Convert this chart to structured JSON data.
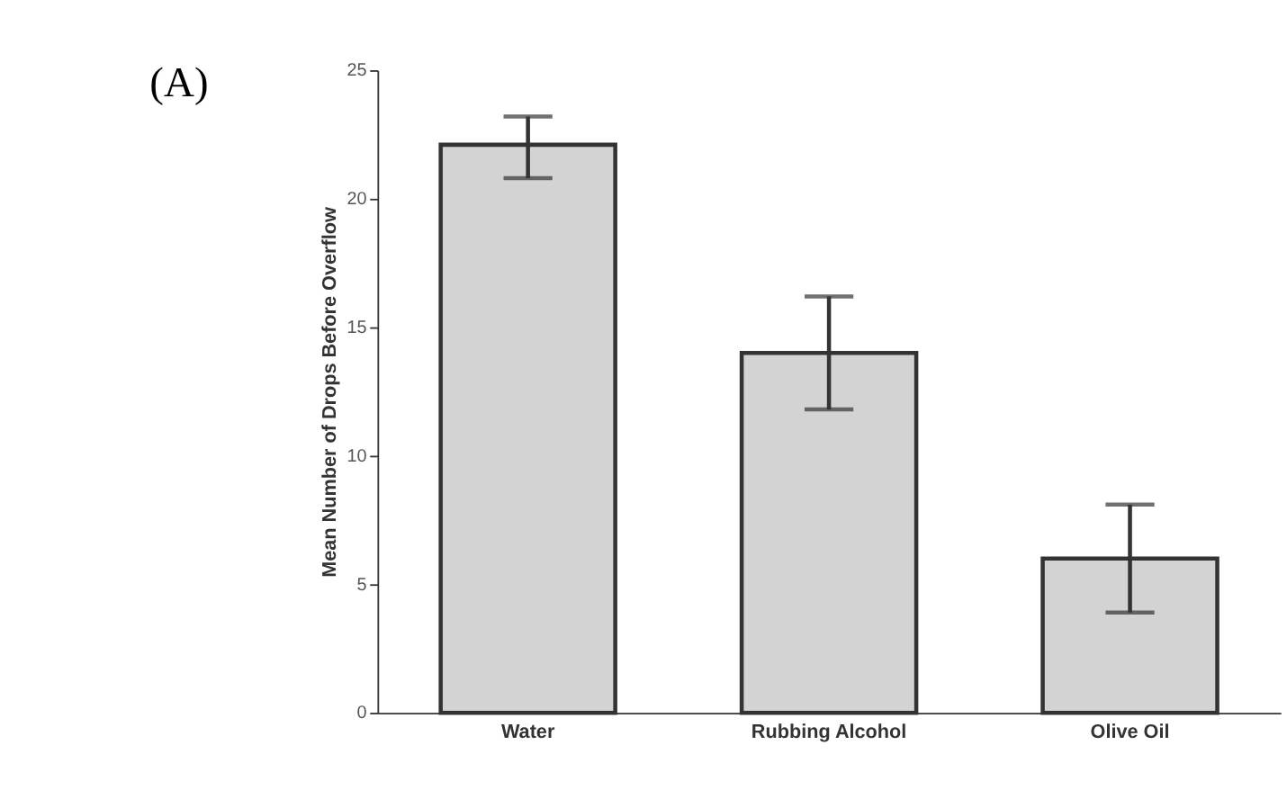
{
  "chart_data": {
    "type": "bar",
    "ylabel": "Mean Number of Drops Before Overflow",
    "categories": [
      "Water",
      "Rubbing Alcohol",
      "Olive Oil"
    ],
    "values": [
      22.1,
      14.0,
      6.0
    ],
    "errors": [
      [
        20.8,
        23.2
      ],
      [
        11.8,
        16.2
      ],
      [
        3.9,
        8.1
      ]
    ],
    "color": "#d3d3d3",
    "ylim": [
      0,
      25
    ],
    "yticks": [
      0,
      5,
      10,
      15,
      20,
      25
    ],
    "grid": false,
    "annotations": [
      "(A)"
    ]
  }
}
